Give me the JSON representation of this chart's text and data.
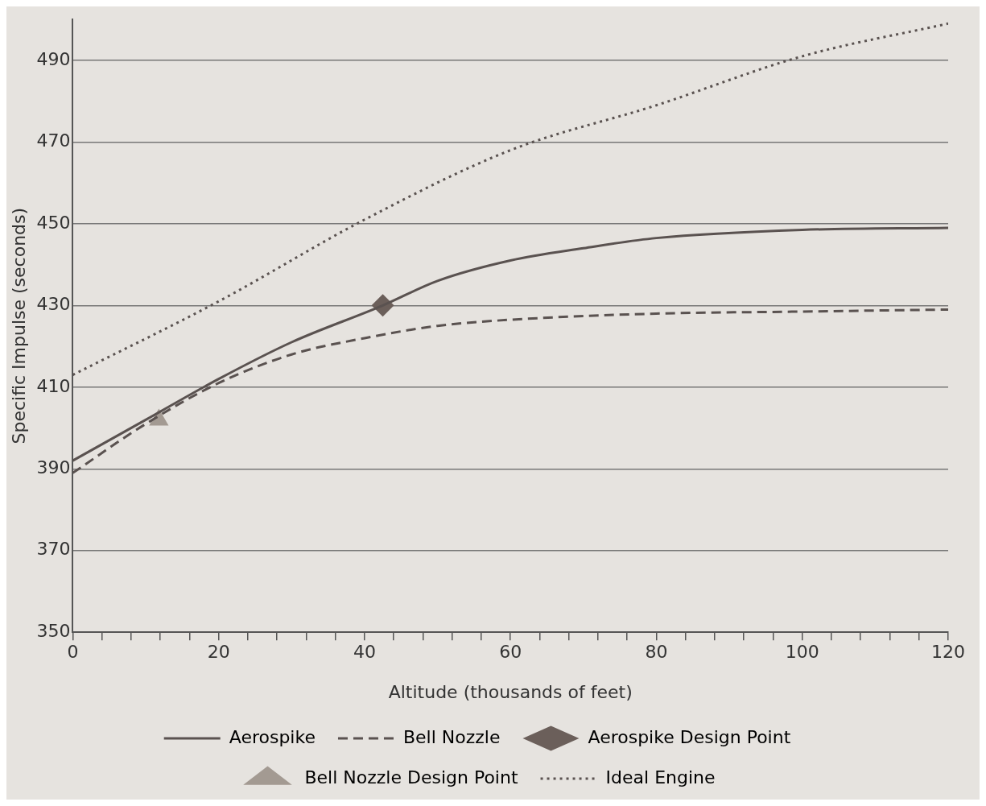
{
  "chart_data": {
    "type": "line",
    "xlabel": "Altitude (thousands of feet)",
    "ylabel": "Specific Impulse (seconds)",
    "xlim": [
      0,
      120
    ],
    "ylim": [
      350,
      500
    ],
    "xticks": [
      0,
      {
        "value": 4,
        "label": null
      },
      {
        "value": 8,
        "label": null
      },
      {
        "value": 12,
        "label": null
      },
      {
        "value": 16,
        "label": null
      },
      20,
      {
        "value": 24,
        "label": null
      },
      {
        "value": 28,
        "label": null
      },
      {
        "value": 32,
        "label": null
      },
      {
        "value": 36,
        "label": null
      },
      40,
      {
        "value": 44,
        "label": null
      },
      {
        "value": 48,
        "label": null
      },
      {
        "value": 52,
        "label": null
      },
      {
        "value": 56,
        "label": null
      },
      60,
      {
        "value": 64,
        "label": null
      },
      {
        "value": 68,
        "label": null
      },
      {
        "value": 72,
        "label": null
      },
      {
        "value": 76,
        "label": null
      },
      80,
      {
        "value": 84,
        "label": null
      },
      {
        "value": 88,
        "label": null
      },
      {
        "value": 92,
        "label": null
      },
      {
        "value": 96,
        "label": null
      },
      100,
      {
        "value": 104,
        "label": null
      },
      {
        "value": 108,
        "label": null
      },
      {
        "value": 112,
        "label": null
      },
      {
        "value": 116,
        "label": null
      },
      120
    ],
    "yticks": [
      350,
      370,
      390,
      410,
      430,
      450,
      470,
      490
    ],
    "grid": "y",
    "legend": "bottom",
    "series": [
      {
        "name": "Aerospike",
        "type": "line",
        "line_style": "solid",
        "marker": "none",
        "color": "#5a5250",
        "x": [
          0,
          10,
          20,
          30,
          42.5,
          50,
          60,
          70,
          80,
          100,
          120
        ],
        "values": [
          392,
          402,
          412,
          421,
          430,
          436,
          441,
          444,
          446.5,
          448.5,
          449
        ]
      },
      {
        "name": "Bell Nozzle",
        "type": "line",
        "line_style": "dashed",
        "marker": "none",
        "color": "#5a5250",
        "x": [
          0,
          10,
          20,
          30,
          40,
          50,
          60,
          80,
          100,
          120
        ],
        "values": [
          389,
          401,
          411,
          418,
          422,
          425,
          426.5,
          428,
          428.5,
          429
        ]
      },
      {
        "name": "Aerospike Design Point",
        "type": "scatter",
        "marker": "diamond",
        "color": "#6b5f5a",
        "x": [
          42.5
        ],
        "values": [
          430
        ]
      },
      {
        "name": "Bell Nozzle Design Point",
        "type": "scatter",
        "marker": "triangle",
        "color": "#a39a92",
        "x": [
          11.8
        ],
        "values": [
          402
        ]
      },
      {
        "name": "Ideal Engine",
        "type": "line",
        "line_style": "dotted",
        "marker": "none",
        "color": "#5a5250",
        "x": [
          0,
          20,
          40,
          60,
          80,
          100,
          120
        ],
        "values": [
          413,
          431,
          451,
          468,
          479,
          491,
          499
        ]
      }
    ]
  }
}
